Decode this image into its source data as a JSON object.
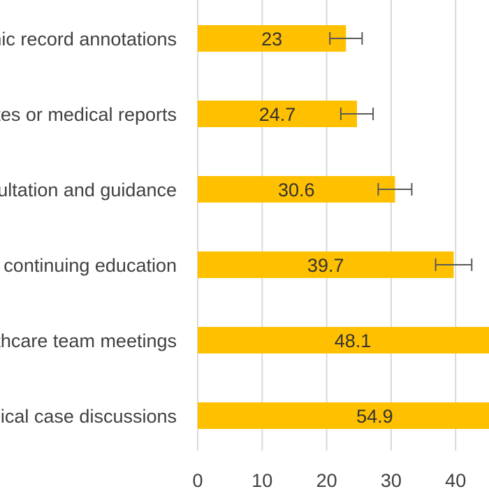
{
  "chart_data": {
    "type": "bar",
    "orientation": "horizontal",
    "categories": [
      "nic record annotations",
      "ates or medical reports",
      "sultation and guidance",
      "d continuing education",
      "lthcare team meetings",
      "nical case discussions"
    ],
    "values": [
      23,
      24.7,
      30.6,
      39.7,
      48.1,
      54.9
    ],
    "data_labels": [
      "23",
      "24.7",
      "30.6",
      "39.7",
      "48.1",
      "54.9"
    ],
    "error_bars": [
      2.5,
      2.5,
      2.6,
      2.8,
      null,
      null
    ],
    "x_ticks": [
      0,
      10,
      20,
      30,
      40
    ],
    "tick_labels": [
      "0",
      "10",
      "20",
      "30",
      "40"
    ],
    "xlim": [
      0,
      45.8
    ],
    "grid": true,
    "legend": "none",
    "colors": {
      "bar": "#FFC000",
      "grid": "#D9D9D9",
      "error": "#595959"
    }
  }
}
